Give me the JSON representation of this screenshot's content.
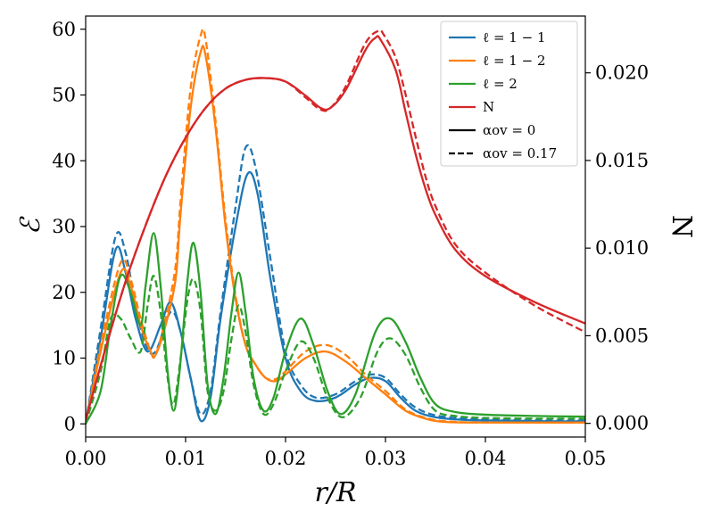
{
  "chart_data": {
    "type": "line",
    "title": "",
    "xlabel": "r/R",
    "ylabel_left": "ℰ",
    "ylabel_right": "N",
    "xlim": [
      0.0,
      0.05
    ],
    "ylim_left": [
      -2,
      62
    ],
    "ylim_right": [
      -0.00078,
      0.02324
    ],
    "x_ticks": [
      0.0,
      0.01,
      0.02,
      0.03,
      0.04,
      0.05
    ],
    "x_tick_labels": [
      "0.00",
      "0.01",
      "0.02",
      "0.03",
      "0.04",
      "0.05"
    ],
    "y_left_ticks": [
      0,
      10,
      20,
      30,
      40,
      50,
      60
    ],
    "y_left_tick_labels": [
      "0",
      "10",
      "20",
      "30",
      "40",
      "50",
      "60"
    ],
    "y_right_ticks": [
      0.0,
      0.005,
      0.01,
      0.015,
      0.02
    ],
    "y_right_tick_labels": [
      "0.000",
      "0.005",
      "0.010",
      "0.015",
      "0.020"
    ],
    "grid": false,
    "legend_position": "top-right",
    "legend": [
      {
        "label": "ℓ = 1 − 1",
        "color": "#1f77b4",
        "style": "solid"
      },
      {
        "label": "ℓ = 1 − 2",
        "color": "#ff7f0e",
        "style": "solid"
      },
      {
        "label": "ℓ = 2",
        "color": "#2ca02c",
        "style": "solid"
      },
      {
        "label": "N",
        "color": "#d62728",
        "style": "solid"
      },
      {
        "label": "αov = 0",
        "color": "#000000",
        "style": "solid"
      },
      {
        "label": "αov = 0.17",
        "color": "#000000",
        "style": "dashed"
      }
    ],
    "series": [
      {
        "name": "ℓ = 1 − 1 (αov = 0)",
        "axis": "left",
        "color": "#1f77b4",
        "style": "solid",
        "points": [
          [
            0,
            0
          ],
          [
            0.0015,
            13
          ],
          [
            0.003,
            26.5
          ],
          [
            0.004,
            23
          ],
          [
            0.005,
            16
          ],
          [
            0.0062,
            11
          ],
          [
            0.0075,
            15
          ],
          [
            0.0085,
            18.5
          ],
          [
            0.0095,
            14
          ],
          [
            0.0105,
            7
          ],
          [
            0.0115,
            0.5
          ],
          [
            0.0125,
            4
          ],
          [
            0.0135,
            16
          ],
          [
            0.015,
            30
          ],
          [
            0.0162,
            38
          ],
          [
            0.0172,
            35
          ],
          [
            0.0185,
            22
          ],
          [
            0.02,
            10
          ],
          [
            0.0215,
            5
          ],
          [
            0.023,
            3.5
          ],
          [
            0.025,
            4
          ],
          [
            0.027,
            6
          ],
          [
            0.0285,
            7
          ],
          [
            0.03,
            6.5
          ],
          [
            0.0315,
            4
          ],
          [
            0.033,
            2
          ],
          [
            0.035,
            1
          ],
          [
            0.038,
            0.6
          ],
          [
            0.042,
            0.5
          ],
          [
            0.046,
            0.4
          ],
          [
            0.05,
            0.4
          ]
        ]
      },
      {
        "name": "ℓ = 1 − 1 (αov = 0.17)",
        "axis": "left",
        "color": "#1f77b4",
        "style": "dashed",
        "points": [
          [
            0,
            0
          ],
          [
            0.0015,
            14.5
          ],
          [
            0.003,
            28.5
          ],
          [
            0.004,
            26
          ],
          [
            0.005,
            18
          ],
          [
            0.006,
            12
          ],
          [
            0.007,
            11
          ],
          [
            0.0085,
            17
          ],
          [
            0.0095,
            14
          ],
          [
            0.0105,
            7
          ],
          [
            0.0115,
            1.5
          ],
          [
            0.0125,
            5
          ],
          [
            0.0135,
            17
          ],
          [
            0.015,
            33
          ],
          [
            0.016,
            42
          ],
          [
            0.017,
            39
          ],
          [
            0.0185,
            25
          ],
          [
            0.02,
            11
          ],
          [
            0.0215,
            6
          ],
          [
            0.023,
            4
          ],
          [
            0.025,
            4.5
          ],
          [
            0.027,
            6.5
          ],
          [
            0.0285,
            7.5
          ],
          [
            0.03,
            7
          ],
          [
            0.0315,
            4.5
          ],
          [
            0.033,
            2.5
          ],
          [
            0.035,
            1.3
          ],
          [
            0.038,
            0.8
          ],
          [
            0.042,
            0.6
          ],
          [
            0.046,
            0.5
          ],
          [
            0.05,
            0.5
          ]
        ]
      },
      {
        "name": "ℓ = 1 − 2 (αov = 0)",
        "axis": "left",
        "color": "#ff7f0e",
        "style": "solid",
        "points": [
          [
            0,
            0
          ],
          [
            0.0015,
            11
          ],
          [
            0.0035,
            23
          ],
          [
            0.0045,
            21
          ],
          [
            0.0055,
            15
          ],
          [
            0.0065,
            11
          ],
          [
            0.007,
            10.5
          ],
          [
            0.008,
            15
          ],
          [
            0.009,
            22
          ],
          [
            0.0095,
            32
          ],
          [
            0.0105,
            48
          ],
          [
            0.0115,
            56.5
          ],
          [
            0.012,
            56
          ],
          [
            0.013,
            45
          ],
          [
            0.014,
            30
          ],
          [
            0.015,
            19
          ],
          [
            0.016,
            12
          ],
          [
            0.017,
            9
          ],
          [
            0.018,
            7
          ],
          [
            0.019,
            6.5
          ],
          [
            0.02,
            7.5
          ],
          [
            0.022,
            10
          ],
          [
            0.024,
            11
          ],
          [
            0.026,
            9.5
          ],
          [
            0.028,
            7
          ],
          [
            0.03,
            4.5
          ],
          [
            0.032,
            2
          ],
          [
            0.034,
            0.8
          ],
          [
            0.036,
            0.3
          ],
          [
            0.04,
            0.2
          ],
          [
            0.05,
            0.2
          ]
        ]
      },
      {
        "name": "ℓ = 1 − 2 (αov = 0.17)",
        "axis": "left",
        "color": "#ff7f0e",
        "style": "dashed",
        "points": [
          [
            0,
            0
          ],
          [
            0.0015,
            12
          ],
          [
            0.0035,
            24.5
          ],
          [
            0.0045,
            22
          ],
          [
            0.0055,
            16
          ],
          [
            0.0065,
            11
          ],
          [
            0.007,
            10.5
          ],
          [
            0.008,
            16
          ],
          [
            0.009,
            24
          ],
          [
            0.0095,
            34
          ],
          [
            0.0105,
            51
          ],
          [
            0.0115,
            59
          ],
          [
            0.012,
            58.5
          ],
          [
            0.013,
            46
          ],
          [
            0.014,
            31
          ],
          [
            0.015,
            19.5
          ],
          [
            0.016,
            12
          ],
          [
            0.017,
            9
          ],
          [
            0.018,
            7
          ],
          [
            0.019,
            6.8
          ],
          [
            0.02,
            8
          ],
          [
            0.022,
            11
          ],
          [
            0.024,
            12
          ],
          [
            0.026,
            10.5
          ],
          [
            0.028,
            7.5
          ],
          [
            0.03,
            5
          ],
          [
            0.032,
            2.2
          ],
          [
            0.034,
            0.9
          ],
          [
            0.036,
            0.4
          ],
          [
            0.04,
            0.2
          ],
          [
            0.05,
            0.2
          ]
        ]
      },
      {
        "name": "ℓ = 2 (αov = 0)",
        "axis": "left",
        "color": "#2ca02c",
        "style": "solid",
        "points": [
          [
            0,
            0
          ],
          [
            0.0015,
            5
          ],
          [
            0.0025,
            15
          ],
          [
            0.0035,
            22.5
          ],
          [
            0.0045,
            20
          ],
          [
            0.0055,
            15
          ],
          [
            0.006,
            21
          ],
          [
            0.0068,
            29
          ],
          [
            0.0075,
            21
          ],
          [
            0.0082,
            8
          ],
          [
            0.0088,
            2
          ],
          [
            0.0094,
            8
          ],
          [
            0.0102,
            22
          ],
          [
            0.0108,
            27.5
          ],
          [
            0.0115,
            20
          ],
          [
            0.0122,
            6
          ],
          [
            0.013,
            1.5
          ],
          [
            0.0138,
            7
          ],
          [
            0.0146,
            17
          ],
          [
            0.0153,
            23
          ],
          [
            0.016,
            17
          ],
          [
            0.0168,
            7
          ],
          [
            0.0178,
            2
          ],
          [
            0.0188,
            4
          ],
          [
            0.02,
            11
          ],
          [
            0.0215,
            16
          ],
          [
            0.0228,
            12
          ],
          [
            0.0242,
            5
          ],
          [
            0.0255,
            1.5
          ],
          [
            0.027,
            4.5
          ],
          [
            0.029,
            14
          ],
          [
            0.0305,
            16
          ],
          [
            0.032,
            12.5
          ],
          [
            0.0335,
            7
          ],
          [
            0.035,
            3
          ],
          [
            0.037,
            1.8
          ],
          [
            0.04,
            1.4
          ],
          [
            0.045,
            1.2
          ],
          [
            0.05,
            1.1
          ]
        ]
      },
      {
        "name": "ℓ = 2 (αov = 0.17)",
        "axis": "left",
        "color": "#2ca02c",
        "style": "dashed",
        "points": [
          [
            0,
            0
          ],
          [
            0.0015,
            8
          ],
          [
            0.0025,
            16
          ],
          [
            0.0035,
            16
          ],
          [
            0.0045,
            13
          ],
          [
            0.0055,
            11
          ],
          [
            0.0062,
            18
          ],
          [
            0.0068,
            22.5
          ],
          [
            0.0075,
            17
          ],
          [
            0.0082,
            7
          ],
          [
            0.0088,
            3
          ],
          [
            0.0095,
            10
          ],
          [
            0.0102,
            19
          ],
          [
            0.0108,
            22
          ],
          [
            0.0115,
            17
          ],
          [
            0.0122,
            5
          ],
          [
            0.013,
            2
          ],
          [
            0.0138,
            5
          ],
          [
            0.0146,
            13
          ],
          [
            0.0153,
            18
          ],
          [
            0.016,
            14
          ],
          [
            0.0168,
            6
          ],
          [
            0.0178,
            1.5
          ],
          [
            0.0188,
            3
          ],
          [
            0.02,
            8
          ],
          [
            0.0215,
            12.5
          ],
          [
            0.0228,
            10
          ],
          [
            0.0242,
            4
          ],
          [
            0.0257,
            1
          ],
          [
            0.0275,
            4
          ],
          [
            0.0292,
            11
          ],
          [
            0.0305,
            13
          ],
          [
            0.032,
            10.5
          ],
          [
            0.0335,
            5.5
          ],
          [
            0.035,
            2
          ],
          [
            0.037,
            1.2
          ],
          [
            0.04,
            0.9
          ],
          [
            0.045,
            0.8
          ],
          [
            0.05,
            0.8
          ]
        ]
      },
      {
        "name": "N (αov = 0)",
        "axis": "right",
        "color": "#d62728",
        "style": "solid",
        "points": [
          [
            0,
            0.0002
          ],
          [
            0.002,
            0.0043
          ],
          [
            0.004,
            0.0081
          ],
          [
            0.006,
            0.0113
          ],
          [
            0.008,
            0.0141
          ],
          [
            0.01,
            0.0163
          ],
          [
            0.012,
            0.018
          ],
          [
            0.014,
            0.0191
          ],
          [
            0.016,
            0.0196
          ],
          [
            0.018,
            0.0197
          ],
          [
            0.02,
            0.0195
          ],
          [
            0.022,
            0.0187
          ],
          [
            0.0235,
            0.018
          ],
          [
            0.0245,
            0.018
          ],
          [
            0.026,
            0.019
          ],
          [
            0.028,
            0.0213
          ],
          [
            0.029,
            0.022
          ],
          [
            0.0295,
            0.0219
          ],
          [
            0.031,
            0.0202
          ],
          [
            0.032,
            0.0178
          ],
          [
            0.033,
            0.0154
          ],
          [
            0.034,
            0.0134
          ],
          [
            0.035,
            0.0119
          ],
          [
            0.037,
            0.0099
          ],
          [
            0.04,
            0.0084
          ],
          [
            0.045,
            0.0069
          ],
          [
            0.05,
            0.0057
          ]
        ]
      },
      {
        "name": "N (αov = 0.17)",
        "axis": "right",
        "color": "#d62728",
        "style": "dashed",
        "points": [
          [
            0,
            0.0002
          ],
          [
            0.002,
            0.0043
          ],
          [
            0.004,
            0.0081
          ],
          [
            0.006,
            0.0113
          ],
          [
            0.008,
            0.0141
          ],
          [
            0.01,
            0.0163
          ],
          [
            0.012,
            0.018
          ],
          [
            0.014,
            0.0191
          ],
          [
            0.016,
            0.0196
          ],
          [
            0.018,
            0.0197
          ],
          [
            0.02,
            0.0195
          ],
          [
            0.022,
            0.0186
          ],
          [
            0.0235,
            0.0179
          ],
          [
            0.0245,
            0.018
          ],
          [
            0.026,
            0.0192
          ],
          [
            0.028,
            0.0217
          ],
          [
            0.0293,
            0.0224
          ],
          [
            0.0298,
            0.0222
          ],
          [
            0.031,
            0.0209
          ],
          [
            0.032,
            0.0188
          ],
          [
            0.033,
            0.0164
          ],
          [
            0.034,
            0.0141
          ],
          [
            0.035,
            0.0124
          ],
          [
            0.037,
            0.0102
          ],
          [
            0.04,
            0.0086
          ],
          [
            0.045,
            0.0067
          ],
          [
            0.05,
            0.0052
          ]
        ]
      }
    ]
  }
}
